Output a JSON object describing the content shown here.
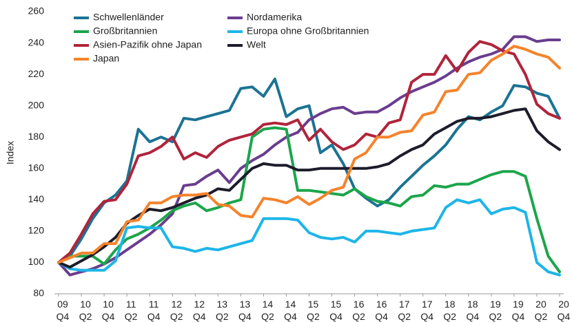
{
  "chart_data": {
    "type": "line",
    "ylabel": "Index",
    "categories": [
      "09 Q4",
      null,
      "10 Q2",
      null,
      "10 Q4",
      null,
      "11 Q2",
      null,
      "11 Q4",
      null,
      "12 Q2",
      null,
      "12 Q4",
      null,
      "13 Q2",
      null,
      "13 Q4",
      null,
      "14 Q2",
      null,
      "14 Q4",
      null,
      "15 Q2",
      null,
      "15 Q4",
      null,
      "16 Q2",
      null,
      "16 Q4",
      null,
      "17 Q2",
      null,
      "17 Q4",
      null,
      "18 Q2",
      null,
      "18 Q4",
      null,
      "19 Q2",
      null,
      "19 Q4",
      null,
      "20 Q2",
      null,
      "20 Q4"
    ],
    "ylim": [
      80,
      260
    ],
    "yticks": [
      80,
      100,
      120,
      140,
      160,
      180,
      200,
      220,
      240,
      260
    ],
    "grid": false,
    "legend": "upper left",
    "series": [
      {
        "name": "Schwellenländer",
        "color": "#1b7393",
        "values": [
          100,
          104,
          115,
          128,
          138,
          143,
          152,
          185,
          177,
          180,
          177,
          192,
          191,
          193,
          195,
          197,
          211,
          212,
          206,
          217,
          193,
          198,
          200,
          170,
          175,
          163,
          147,
          141,
          136,
          140,
          148,
          155,
          162,
          168,
          175,
          185,
          193,
          191,
          196,
          200,
          213,
          212,
          208,
          206,
          192
        ]
      },
      {
        "name": "Nordamerika",
        "color": "#6a3d8e",
        "values": [
          100,
          92,
          94,
          96,
          99,
          103,
          108,
          113,
          118,
          124,
          131,
          149,
          150,
          155,
          159,
          151,
          160,
          165,
          169,
          175,
          180,
          183,
          191,
          195,
          198,
          199,
          195,
          196,
          196,
          200,
          205,
          209,
          212,
          215,
          219,
          224,
          228,
          231,
          233,
          236,
          244,
          244,
          241,
          242,
          242
        ]
      },
      {
        "name": "Großbritannien",
        "color": "#1ca54b",
        "values": [
          100,
          104,
          104,
          104,
          99,
          108,
          115,
          118,
          122,
          127,
          133,
          136,
          138,
          133,
          135,
          138,
          140,
          180,
          185,
          186,
          185,
          146,
          146,
          145,
          144,
          143,
          147,
          142,
          139,
          138,
          136,
          142,
          143,
          149,
          148,
          150,
          150,
          153,
          156,
          158,
          158,
          155,
          128,
          104,
          94
        ]
      },
      {
        "name": "Europa ohne Großbritannien",
        "color": "#1db5e8",
        "values": [
          100,
          96,
          95,
          95,
          95,
          101,
          122,
          123,
          122,
          122,
          110,
          109,
          107,
          109,
          108,
          110,
          112,
          114,
          128,
          128,
          128,
          127,
          119,
          116,
          115,
          116,
          113,
          120,
          120,
          119,
          118,
          120,
          121,
          122,
          135,
          140,
          138,
          140,
          131,
          134,
          135,
          132,
          100,
          94,
          92
        ]
      },
      {
        "name": "Asien-Pazifik ohne Japan",
        "color": "#b0243b",
        "values": [
          100,
          106,
          118,
          131,
          139,
          140,
          150,
          168,
          170,
          174,
          180,
          166,
          170,
          167,
          174,
          178,
          180,
          182,
          188,
          189,
          188,
          191,
          178,
          185,
          177,
          172,
          175,
          182,
          180,
          189,
          191,
          215,
          220,
          220,
          232,
          222,
          234,
          241,
          239,
          235,
          233,
          220,
          201,
          195,
          192
        ]
      },
      {
        "name": "Welt",
        "color": "#1c1c2b",
        "values": [
          100,
          97,
          101,
          105,
          110,
          116,
          125,
          130,
          134,
          133,
          135,
          138,
          141,
          143,
          147,
          146,
          153,
          160,
          163,
          162,
          162,
          159,
          159,
          160,
          160,
          160,
          160,
          160,
          161,
          163,
          168,
          172,
          175,
          182,
          186,
          190,
          192,
          192,
          193,
          195,
          197,
          198,
          184,
          177,
          172
        ]
      },
      {
        "name": "Japan",
        "color": "#f5832b",
        "values": [
          100,
          103,
          106,
          106,
          112,
          112,
          126,
          127,
          138,
          138,
          142,
          143,
          143,
          144,
          137,
          136,
          130,
          129,
          141,
          140,
          138,
          142,
          137,
          141,
          146,
          148,
          166,
          170,
          180,
          180,
          183,
          184,
          194,
          196,
          209,
          210,
          220,
          221,
          229,
          233,
          238,
          236,
          233,
          231,
          224
        ]
      }
    ]
  }
}
